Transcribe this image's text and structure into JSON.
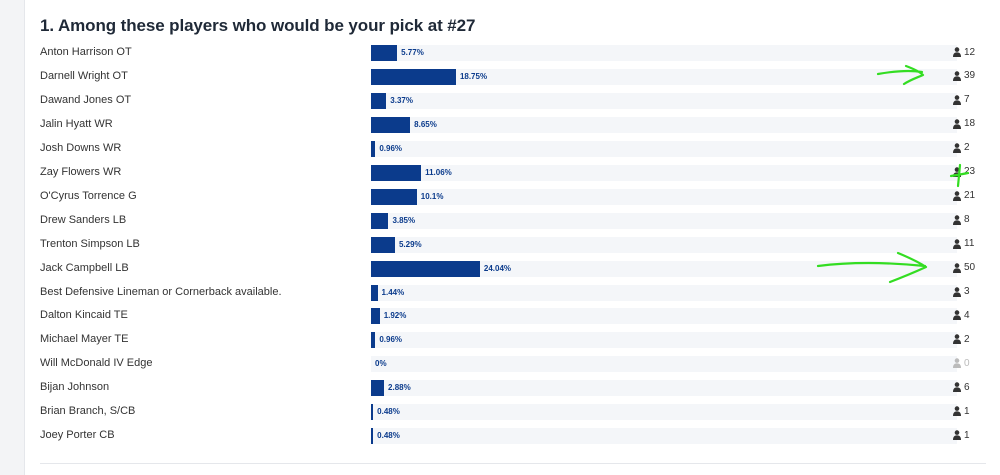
{
  "poll": {
    "title": "1. Among these players who would be your pick at #27",
    "icon": "person-icon",
    "bar_color": "#0b3b8c",
    "annotation_color": "#33dd22",
    "options": [
      {
        "label": "Anton Harrison OT",
        "percent": 5.77,
        "percent_label": "5.77%",
        "votes": "12"
      },
      {
        "label": "Darnell Wright OT",
        "percent": 18.75,
        "percent_label": "18.75%",
        "votes": "39"
      },
      {
        "label": "Dawand Jones OT",
        "percent": 3.37,
        "percent_label": "3.37%",
        "votes": "7"
      },
      {
        "label": "Jalin Hyatt WR",
        "percent": 8.65,
        "percent_label": "8.65%",
        "votes": "18"
      },
      {
        "label": "Josh Downs WR",
        "percent": 0.96,
        "percent_label": "0.96%",
        "votes": "2"
      },
      {
        "label": "Zay Flowers WR",
        "percent": 11.06,
        "percent_label": "11.06%",
        "votes": "23"
      },
      {
        "label": "O'Cyrus Torrence G",
        "percent": 10.1,
        "percent_label": "10.1%",
        "votes": "21"
      },
      {
        "label": "Drew Sanders LB",
        "percent": 3.85,
        "percent_label": "3.85%",
        "votes": "8"
      },
      {
        "label": "Trenton Simpson LB",
        "percent": 5.29,
        "percent_label": "5.29%",
        "votes": "11"
      },
      {
        "label": "Jack Campbell LB",
        "percent": 24.04,
        "percent_label": "24.04%",
        "votes": "50"
      },
      {
        "label": "Best Defensive Lineman or Cornerback available.",
        "percent": 1.44,
        "percent_label": "1.44%",
        "votes": "3"
      },
      {
        "label": "Dalton Kincaid TE",
        "percent": 1.92,
        "percent_label": "1.92%",
        "votes": "4"
      },
      {
        "label": "Michael Mayer TE",
        "percent": 0.96,
        "percent_label": "0.96%",
        "votes": "2"
      },
      {
        "label": "Will McDonald IV Edge",
        "percent": 0,
        "percent_label": "0%",
        "votes": "0"
      },
      {
        "label": "Bijan Johnson",
        "percent": 2.88,
        "percent_label": "2.88%",
        "votes": "6"
      },
      {
        "label": "Brian Branch, S/CB",
        "percent": 0.48,
        "percent_label": "0.48%",
        "votes": "1"
      },
      {
        "label": "Joey Porter CB",
        "percent": 0.48,
        "percent_label": "0.48%",
        "votes": "1"
      }
    ]
  }
}
